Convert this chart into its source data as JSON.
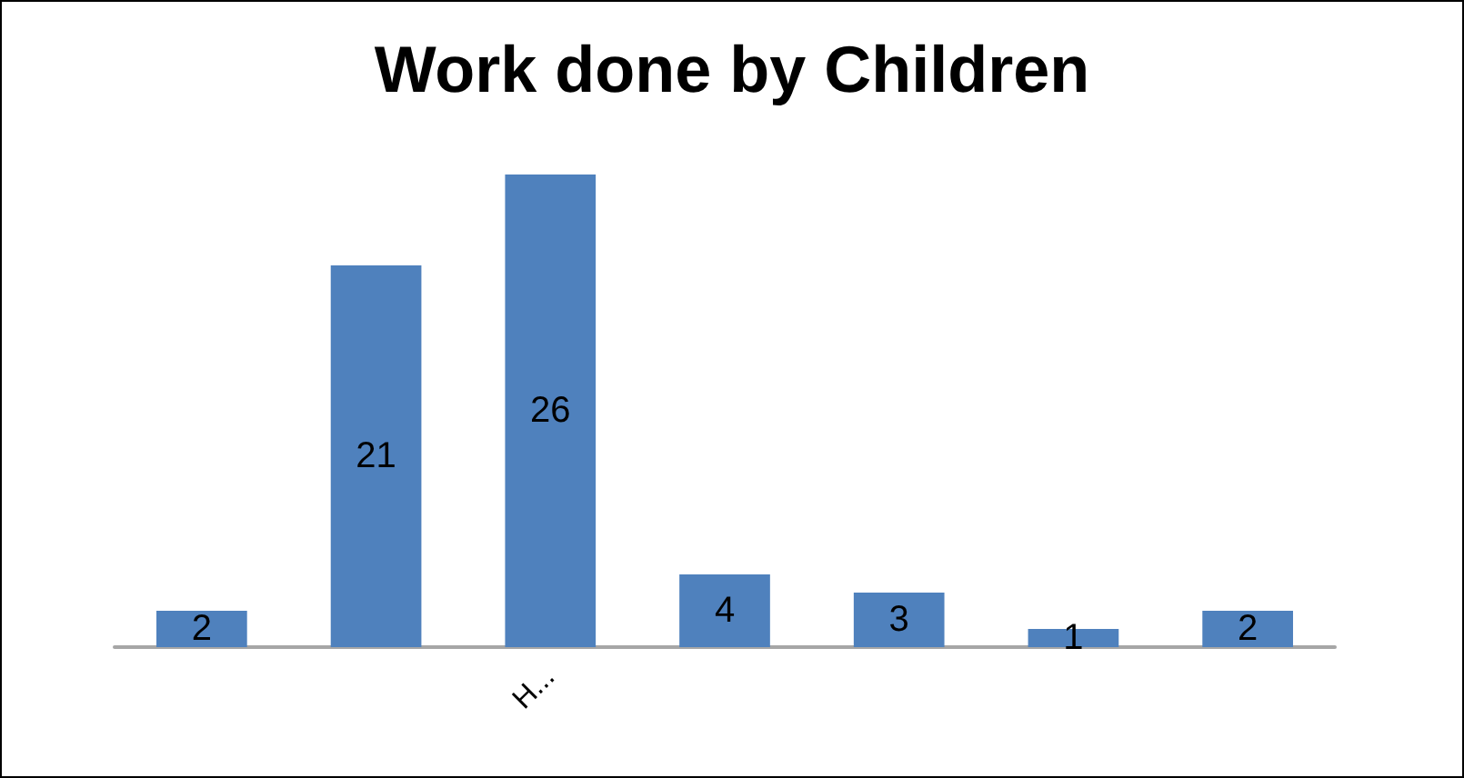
{
  "chart_data": {
    "type": "bar",
    "title": "Work done by Children",
    "categories": [
      null,
      null,
      "H...",
      null,
      null,
      null,
      null
    ],
    "values": [
      2,
      21,
      26,
      4,
      3,
      1,
      2
    ],
    "color": "#4f81bd",
    "data_labels": true
  }
}
